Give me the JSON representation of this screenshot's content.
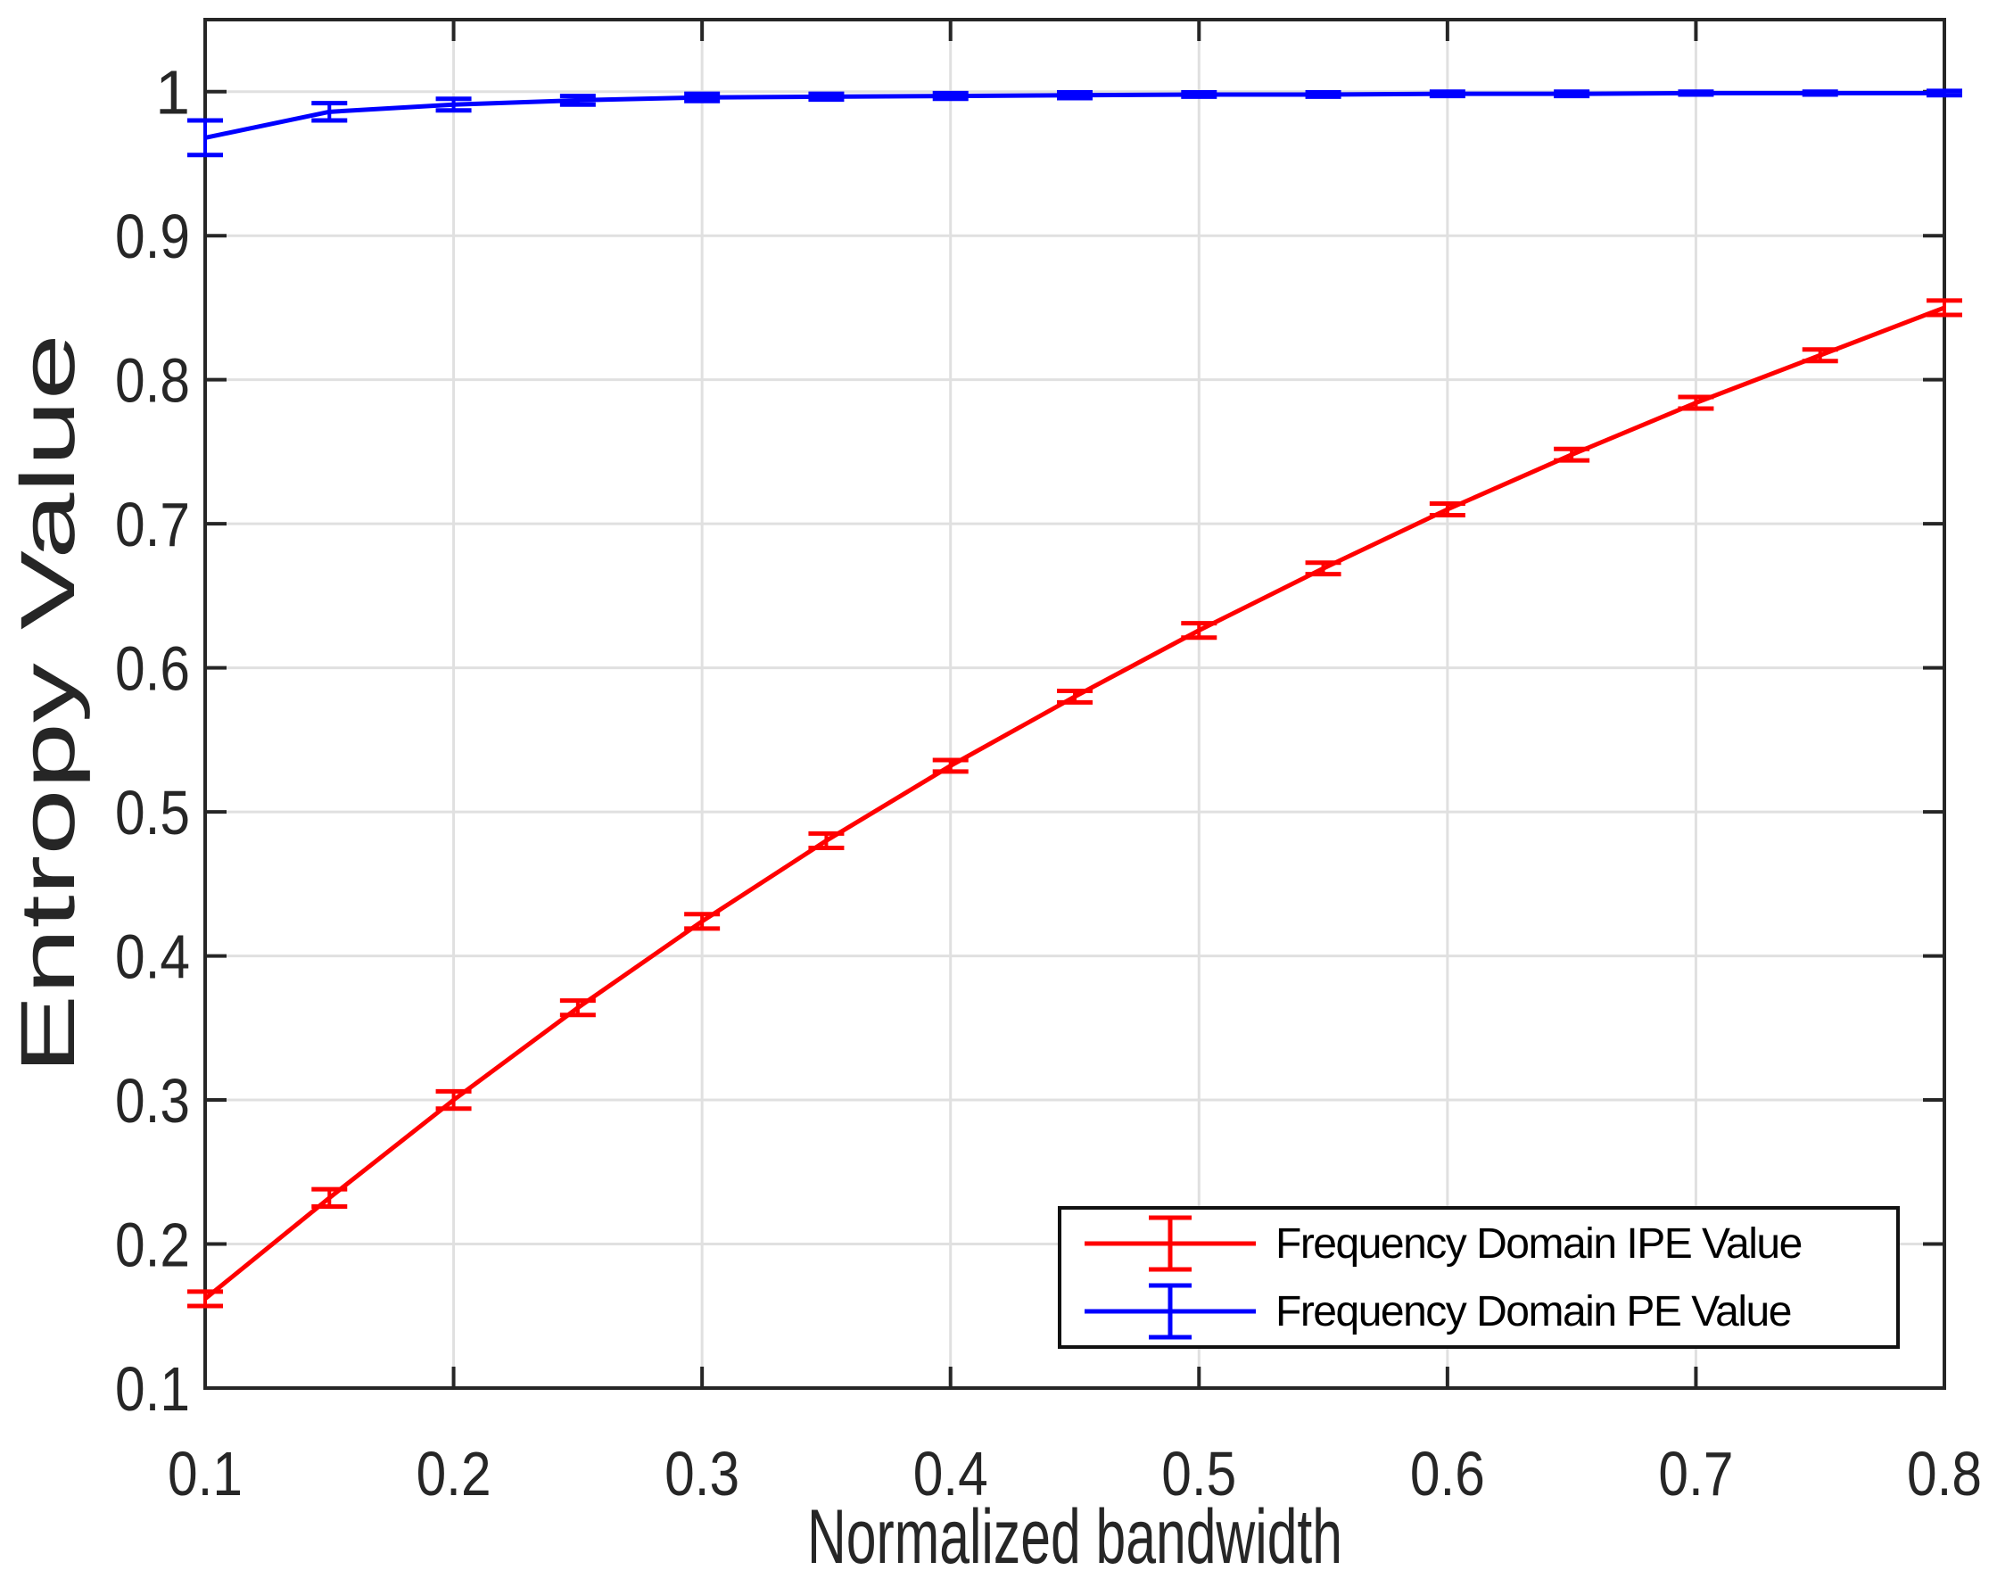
{
  "figure": {
    "background": "#ffffff"
  },
  "colors": {
    "axis": "#262626",
    "grid": "#e0e0e0",
    "tick_text": "#262626",
    "legend_border": "#111111",
    "legend_text": "#000000"
  },
  "chart_data": {
    "type": "line",
    "title": "",
    "xlabel": "Normalized bandwidth",
    "ylabel": "Entropy Value",
    "xlim": [
      0.1,
      0.8
    ],
    "ylim": [
      0.1,
      1.05
    ],
    "grid": true,
    "x_ticks": [
      0.1,
      0.2,
      0.3,
      0.4,
      0.5,
      0.6,
      0.7,
      0.8
    ],
    "x_tick_labels": [
      "0.1",
      "0.2",
      "0.3",
      "0.4",
      "0.5",
      "0.6",
      "0.7",
      "0.8"
    ],
    "y_ticks": [
      0.1,
      0.2,
      0.3,
      0.4,
      0.5,
      0.6,
      0.7,
      0.8,
      0.9,
      1.0
    ],
    "y_tick_labels": [
      "0.1",
      "0.2",
      "0.3",
      "0.4",
      "0.5",
      "0.6",
      "0.7",
      "0.8",
      "0.9",
      "1"
    ],
    "x": [
      0.1,
      0.15,
      0.2,
      0.25,
      0.3,
      0.35,
      0.4,
      0.45,
      0.5,
      0.55,
      0.6,
      0.65,
      0.7,
      0.75,
      0.8
    ],
    "series": [
      {
        "name": "Frequency Domain IPE Value",
        "color": "#ff0000",
        "style": "errorbar-line",
        "values": [
          0.162,
          0.232,
          0.3,
          0.364,
          0.424,
          0.48,
          0.532,
          0.58,
          0.626,
          0.669,
          0.71,
          0.748,
          0.784,
          0.817,
          0.85
        ],
        "errors": [
          0.005,
          0.006,
          0.006,
          0.005,
          0.005,
          0.005,
          0.004,
          0.004,
          0.005,
          0.004,
          0.004,
          0.004,
          0.004,
          0.004,
          0.005
        ]
      },
      {
        "name": "Frequency Domain PE Value",
        "color": "#0000ff",
        "style": "errorbar-line",
        "values": [
          0.968,
          0.986,
          0.991,
          0.994,
          0.996,
          0.9965,
          0.997,
          0.9975,
          0.998,
          0.998,
          0.9985,
          0.9985,
          0.999,
          0.999,
          0.999
        ],
        "errors": [
          0.012,
          0.006,
          0.004,
          0.003,
          0.0025,
          0.002,
          0.002,
          0.002,
          0.0015,
          0.0015,
          0.0015,
          0.0015,
          0.001,
          0.001,
          0.0015
        ]
      }
    ],
    "legend": {
      "position": "bottom-right"
    }
  }
}
